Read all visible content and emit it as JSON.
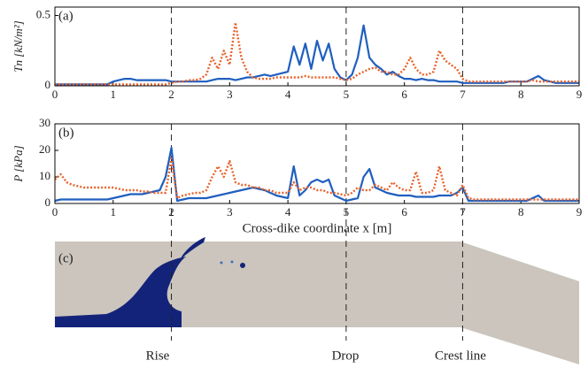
{
  "chart_data": [
    {
      "type": "line",
      "panel": "(a)",
      "ylabel": "Tn [kN/m²]",
      "x": [
        0,
        0.1,
        0.2,
        0.3,
        0.4,
        0.5,
        0.6,
        0.7,
        0.8,
        0.9,
        1,
        1.1,
        1.2,
        1.3,
        1.4,
        1.5,
        1.6,
        1.7,
        1.8,
        1.9,
        2,
        2.1,
        2.2,
        2.3,
        2.4,
        2.5,
        2.6,
        2.7,
        2.8,
        2.9,
        3,
        3.1,
        3.2,
        3.3,
        3.4,
        3.5,
        3.6,
        3.7,
        3.8,
        3.9,
        4,
        4.1,
        4.2,
        4.3,
        4.4,
        4.5,
        4.6,
        4.7,
        4.8,
        4.9,
        5,
        5.1,
        5.2,
        5.3,
        5.4,
        5.5,
        5.6,
        5.7,
        5.8,
        5.9,
        6,
        6.1,
        6.2,
        6.3,
        6.4,
        6.5,
        6.6,
        6.7,
        6.8,
        6.9,
        7,
        7.1,
        7.2,
        7.3,
        7.4,
        7.5,
        7.6,
        7.7,
        7.8,
        7.9,
        8,
        8.1,
        8.2,
        8.3,
        8.4,
        8.5,
        8.6,
        8.7,
        8.8,
        8.9,
        9
      ],
      "series": [
        {
          "color": "#1f5fbf",
          "style": "solid",
          "values": [
            0.01,
            0.01,
            0.01,
            0.01,
            0.01,
            0.01,
            0.01,
            0.01,
            0.01,
            0.01,
            0.03,
            0.04,
            0.05,
            0.05,
            0.04,
            0.04,
            0.04,
            0.04,
            0.04,
            0.04,
            0.03,
            0.03,
            0.03,
            0.03,
            0.03,
            0.03,
            0.03,
            0.04,
            0.05,
            0.05,
            0.05,
            0.04,
            0.05,
            0.06,
            0.06,
            0.07,
            0.08,
            0.07,
            0.08,
            0.09,
            0.1,
            0.28,
            0.15,
            0.3,
            0.12,
            0.32,
            0.18,
            0.3,
            0.12,
            0.06,
            0.04,
            0.08,
            0.2,
            0.43,
            0.2,
            0.15,
            0.12,
            0.08,
            0.1,
            0.07,
            0.05,
            0.05,
            0.04,
            0.05,
            0.04,
            0.04,
            0.03,
            0.03,
            0.03,
            0.03,
            0.02,
            0.02,
            0.02,
            0.02,
            0.02,
            0.02,
            0.02,
            0.02,
            0.03,
            0.03,
            0.03,
            0.03,
            0.05,
            0.07,
            0.04,
            0.03,
            0.02,
            0.02,
            0.02,
            0.02,
            0.02
          ]
        },
        {
          "color": "#e8622a",
          "style": "dotted",
          "values": [
            0.01,
            0.01,
            0.01,
            0.01,
            0.01,
            0.01,
            0.01,
            0.01,
            0.01,
            0.01,
            0.01,
            0.01,
            0.01,
            0.01,
            0.01,
            0.01,
            0.01,
            0.01,
            0.01,
            0.01,
            0.02,
            0.03,
            0.03,
            0.04,
            0.04,
            0.05,
            0.08,
            0.2,
            0.12,
            0.25,
            0.15,
            0.45,
            0.2,
            0.1,
            0.06,
            0.05,
            0.05,
            0.05,
            0.06,
            0.06,
            0.06,
            0.06,
            0.06,
            0.07,
            0.06,
            0.06,
            0.06,
            0.06,
            0.06,
            0.05,
            0.04,
            0.05,
            0.08,
            0.1,
            0.12,
            0.13,
            0.1,
            0.1,
            0.08,
            0.08,
            0.12,
            0.2,
            0.12,
            0.08,
            0.08,
            0.1,
            0.25,
            0.18,
            0.15,
            0.12,
            0.05,
            0.03,
            0.03,
            0.03,
            0.03,
            0.03,
            0.03,
            0.03,
            0.03,
            0.03,
            0.03,
            0.03,
            0.04,
            0.03,
            0.03,
            0.03,
            0.03,
            0.03,
            0.03,
            0.03,
            0.03
          ]
        }
      ],
      "xlim": [
        0,
        9
      ],
      "xticks": [
        0,
        1,
        2,
        3,
        4,
        5,
        6,
        7,
        8,
        9
      ],
      "ylim": [
        0,
        0.56
      ],
      "yticks": [
        0,
        0.5
      ],
      "vlines": [
        2,
        5,
        7
      ]
    },
    {
      "type": "line",
      "panel": "(b)",
      "ylabel": "P [kPa]",
      "xlabel": "Cross-dike coordinate x [m]",
      "x": [
        0,
        0.1,
        0.2,
        0.3,
        0.4,
        0.5,
        0.6,
        0.7,
        0.8,
        0.9,
        1,
        1.1,
        1.2,
        1.3,
        1.4,
        1.5,
        1.6,
        1.7,
        1.8,
        1.9,
        2,
        2.1,
        2.2,
        2.3,
        2.4,
        2.5,
        2.6,
        2.7,
        2.8,
        2.9,
        3,
        3.1,
        3.2,
        3.3,
        3.4,
        3.5,
        3.6,
        3.7,
        3.8,
        3.9,
        4,
        4.1,
        4.2,
        4.3,
        4.4,
        4.5,
        4.6,
        4.7,
        4.8,
        4.9,
        5,
        5.1,
        5.2,
        5.3,
        5.4,
        5.5,
        5.6,
        5.7,
        5.8,
        5.9,
        6,
        6.1,
        6.2,
        6.3,
        6.4,
        6.5,
        6.6,
        6.7,
        6.8,
        6.9,
        7,
        7.1,
        7.2,
        7.3,
        7.4,
        7.5,
        7.6,
        7.7,
        7.8,
        7.9,
        8,
        8.1,
        8.2,
        8.3,
        8.4,
        8.5,
        8.6,
        8.7,
        8.8,
        8.9,
        9
      ],
      "series": [
        {
          "color": "#1f5fbf",
          "style": "solid",
          "values": [
            1,
            1.5,
            1.5,
            1.5,
            1.5,
            1.5,
            1.5,
            1.5,
            1.5,
            1.5,
            2,
            2.5,
            3,
            3.5,
            3.5,
            3.5,
            4,
            4.5,
            5,
            10,
            21,
            1,
            1.5,
            2,
            2,
            2,
            2,
            2.5,
            3,
            3.5,
            4,
            4.5,
            5,
            5.5,
            6,
            5.5,
            5,
            4,
            3,
            2.5,
            2,
            14,
            3,
            5,
            8,
            9,
            8,
            9,
            3,
            2,
            1,
            1.5,
            2,
            10,
            13,
            6,
            5,
            4,
            3.5,
            3,
            3,
            3,
            2.5,
            2.5,
            2.5,
            2.5,
            3,
            3,
            3,
            4,
            6,
            1,
            1,
            1,
            1,
            1,
            1,
            1,
            1,
            1,
            1,
            1,
            2,
            3,
            1,
            1,
            1,
            1,
            1,
            1,
            1
          ]
        },
        {
          "color": "#e8622a",
          "style": "dotted",
          "values": [
            9,
            11,
            8,
            7,
            6.5,
            6,
            6,
            6,
            6,
            6,
            6,
            5.5,
            5,
            5,
            5,
            4.5,
            4.5,
            4,
            4,
            4,
            17,
            2,
            3,
            3.5,
            4,
            4,
            5,
            10,
            14,
            10,
            16,
            8,
            7,
            7,
            6,
            6,
            5,
            5,
            4,
            4,
            4,
            8,
            5,
            6,
            6,
            5,
            5,
            4,
            4,
            3.5,
            3,
            4,
            6,
            5,
            5,
            7,
            6,
            5,
            8,
            6,
            5,
            5,
            12,
            4,
            4,
            5,
            14,
            5,
            4,
            3,
            7,
            2,
            1.5,
            1.5,
            1.5,
            1.5,
            1.5,
            1.5,
            1.5,
            1.5,
            1.5,
            1.5,
            1.5,
            1.5,
            1.5,
            1.5,
            1.5,
            1.5,
            1.5,
            1.5,
            1.5
          ]
        }
      ],
      "xlim": [
        0,
        9
      ],
      "xticks": [
        0,
        1,
        2,
        3,
        4,
        5,
        6,
        7,
        8,
        9
      ],
      "ylim": [
        0,
        30
      ],
      "yticks": [
        0,
        10,
        20,
        30
      ],
      "vlines": [
        2,
        5,
        7
      ]
    }
  ],
  "diagram": {
    "panel": "(c)",
    "labels": [
      "Rise",
      "Drop",
      "Crest line"
    ]
  }
}
